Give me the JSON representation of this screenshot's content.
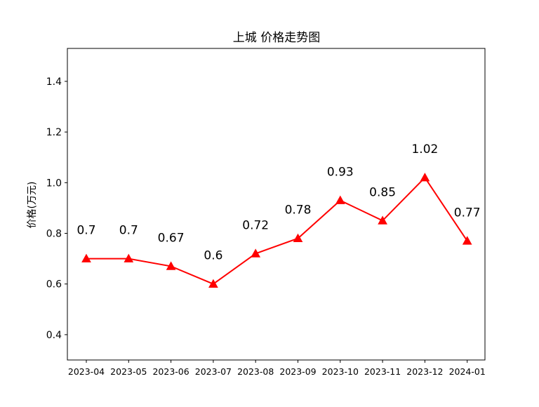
{
  "chart_data": {
    "type": "line",
    "title": "上城 价格走势图",
    "xlabel": "",
    "ylabel": "价格(万元)",
    "categories": [
      "2023-04",
      "2023-05",
      "2023-06",
      "2023-07",
      "2023-08",
      "2023-09",
      "2023-10",
      "2023-11",
      "2023-12",
      "2024-01"
    ],
    "series": [
      {
        "values": [
          0.7,
          0.7,
          0.67,
          0.6,
          0.72,
          0.78,
          0.93,
          0.85,
          1.02,
          0.77
        ]
      }
    ],
    "data_labels": [
      "0.7",
      "0.7",
      "0.67",
      "0.6",
      "0.72",
      "0.78",
      "0.93",
      "0.85",
      "1.02",
      "0.77"
    ],
    "ylim": [
      0.3,
      1.53
    ],
    "yticks": [
      0.4,
      0.6,
      0.8,
      1.0,
      1.2,
      1.4
    ],
    "ytick_labels": [
      "0.4",
      "0.6",
      "0.8",
      "1.0",
      "1.2",
      "1.4"
    ],
    "line_color": "#ff0000",
    "marker": "triangle-up",
    "grid": false,
    "legend": "none"
  }
}
